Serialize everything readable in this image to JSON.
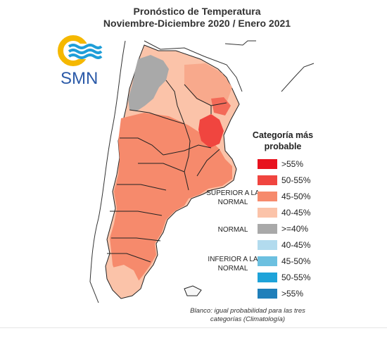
{
  "header": {
    "title_line1": "Pronóstico de Temperatura",
    "title_line2": "Noviembre-Diciembre 2020 / Enero 2021"
  },
  "logo": {
    "text": "SMN",
    "icon": "smn-sun-waves-logo",
    "colors": {
      "sun": "#f5b800",
      "waves": "#1f9ed8",
      "text": "#2b5aa8"
    }
  },
  "legend": {
    "title": "Categoría más probable",
    "groups": [
      {
        "label": "SUPERIOR A LA NORMAL"
      },
      {
        "label": "NORMAL"
      },
      {
        "label": "INFERIOR A LA NORMAL"
      }
    ],
    "items": [
      {
        "label": ">55%",
        "color": "#e8121e"
      },
      {
        "label": "50-55%",
        "color": "#f0453f"
      },
      {
        "label": "45-50%",
        "color": "#f68a6c"
      },
      {
        "label": "40-45%",
        "color": "#fbc3a9"
      },
      {
        "label": ">=40%",
        "color": "#a9a9a9"
      },
      {
        "label": "40-45%",
        "color": "#b2dbee"
      },
      {
        "label": "45-50%",
        "color": "#6cc0e0"
      },
      {
        "label": "50-55%",
        "color": "#1ea3d9"
      },
      {
        "label": ">55%",
        "color": "#1f7fba"
      }
    ]
  },
  "note": "Blanco: igual probabilidad para las tres categorías (Climatología)",
  "map": {
    "colors": {
      "superior_50_55": "#f0453f",
      "superior_45_50": "#f68a6c",
      "superior_40_45": "#fbc3a9",
      "normal": "#a9a9a9",
      "borders": "#222222"
    }
  }
}
